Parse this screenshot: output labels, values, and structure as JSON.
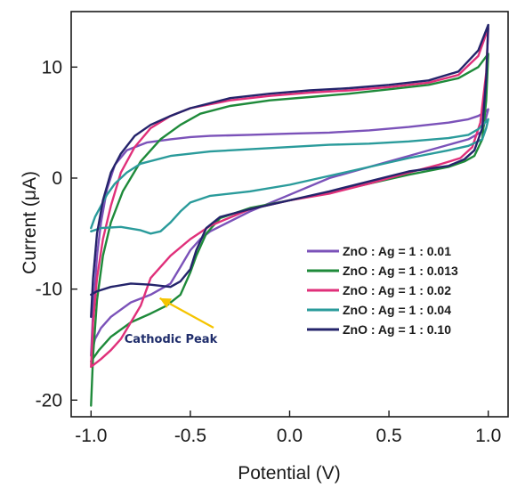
{
  "chart_data": {
    "type": "line",
    "xlabel": "Potential (V)",
    "ylabel": "Current (μA)",
    "xlim": [
      -1.1,
      1.1
    ],
    "ylim": [
      -21.5,
      15
    ],
    "xticks": [
      "-1.0",
      "-0.5",
      "0.0",
      "0.5",
      "1.0"
    ],
    "xtick_values": [
      -1.0,
      -0.5,
      0.0,
      0.5,
      1.0
    ],
    "yticks": [
      "10",
      "0",
      "-10",
      "-20"
    ],
    "ytick_values": [
      10,
      0,
      -10,
      -20
    ],
    "grid": false,
    "legend_position": "lower-right",
    "series": [
      {
        "name": "ZnO : Ag = 1 : 0.01",
        "color": "#7b52b9",
        "x": [
          -1.0,
          -0.99,
          -0.97,
          -0.95,
          -0.92,
          -0.88,
          -0.82,
          -0.72,
          -0.6,
          -0.5,
          -0.4,
          -0.2,
          0.0,
          0.2,
          0.4,
          0.6,
          0.8,
          0.9,
          0.95,
          0.98,
          1.0,
          0.99,
          0.97,
          0.9,
          0.8,
          0.6,
          0.4,
          0.2,
          0.0,
          -0.2,
          -0.4,
          -0.45,
          -0.5,
          -0.55,
          -0.6,
          -0.7,
          -0.8,
          -0.9,
          -0.95,
          -0.98,
          -1.0
        ],
        "y": [
          -16,
          -12,
          -7,
          -4,
          -1,
          1.2,
          2.5,
          3.2,
          3.5,
          3.7,
          3.8,
          3.9,
          4.0,
          4.1,
          4.3,
          4.6,
          5.0,
          5.3,
          5.6,
          5.9,
          6.2,
          5.5,
          4.2,
          3.5,
          3.0,
          2.0,
          1.0,
          0.0,
          -1.5,
          -3.0,
          -4.8,
          -5.5,
          -6.5,
          -8.0,
          -9.5,
          -10.5,
          -11.2,
          -12.5,
          -13.5,
          -14.5,
          -16
        ]
      },
      {
        "name": "ZnO : Ag = 1 : 0.013",
        "color": "#1e8a3a",
        "x": [
          -1.0,
          -0.99,
          -0.97,
          -0.94,
          -0.9,
          -0.84,
          -0.75,
          -0.65,
          -0.55,
          -0.45,
          -0.3,
          -0.1,
          0.1,
          0.3,
          0.5,
          0.7,
          0.85,
          0.95,
          1.0,
          0.99,
          0.97,
          0.93,
          0.88,
          0.8,
          0.6,
          0.4,
          0.2,
          0.0,
          -0.2,
          -0.35,
          -0.42,
          -0.47,
          -0.5,
          -0.55,
          -0.62,
          -0.7,
          -0.8,
          -0.9,
          -0.96,
          -1.0
        ],
        "y": [
          -20.5,
          -16,
          -11,
          -7,
          -4,
          -1.2,
          1.5,
          3.5,
          4.8,
          5.8,
          6.5,
          7.0,
          7.3,
          7.6,
          8.0,
          8.4,
          9.0,
          10.0,
          11.2,
          7.0,
          3.5,
          2.0,
          1.5,
          1.0,
          0.3,
          -0.5,
          -1.3,
          -2.0,
          -2.7,
          -3.6,
          -5.0,
          -7.0,
          -8.5,
          -10.5,
          -11.5,
          -12.2,
          -13.0,
          -14.3,
          -15.5,
          -16.5
        ]
      },
      {
        "name": "ZnO : Ag = 1 : 0.02",
        "color": "#e0307a",
        "x": [
          -1.0,
          -0.99,
          -0.97,
          -0.94,
          -0.9,
          -0.85,
          -0.78,
          -0.7,
          -0.6,
          -0.5,
          -0.3,
          -0.1,
          0.1,
          0.3,
          0.5,
          0.7,
          0.85,
          0.95,
          1.0,
          0.99,
          0.96,
          0.92,
          0.86,
          0.75,
          0.6,
          0.4,
          0.2,
          0.0,
          -0.2,
          -0.4,
          -0.5,
          -0.6,
          -0.7,
          -0.75,
          -0.8,
          -0.85,
          -0.9,
          -0.95,
          -1.0
        ],
        "y": [
          -17,
          -13,
          -9,
          -5.5,
          -2.5,
          0.5,
          2.8,
          4.5,
          5.6,
          6.3,
          7.0,
          7.4,
          7.7,
          7.9,
          8.2,
          8.6,
          9.3,
          11.0,
          13.5,
          9.5,
          5.0,
          2.8,
          1.8,
          1.2,
          0.5,
          -0.5,
          -1.4,
          -2.0,
          -2.8,
          -4.3,
          -5.5,
          -7.0,
          -9.0,
          -11.5,
          -13.0,
          -14.5,
          -15.5,
          -16.3,
          -17
        ]
      },
      {
        "name": "ZnO : Ag = 1 : 0.04",
        "color": "#2a9b9b",
        "x": [
          -1.0,
          -0.98,
          -0.95,
          -0.92,
          -0.88,
          -0.82,
          -0.75,
          -0.6,
          -0.4,
          -0.2,
          0.0,
          0.2,
          0.4,
          0.6,
          0.8,
          0.9,
          0.95,
          1.0,
          0.99,
          0.97,
          0.9,
          0.8,
          0.6,
          0.4,
          0.2,
          0.0,
          -0.2,
          -0.4,
          -0.5,
          -0.55,
          -0.6,
          -0.65,
          -0.7,
          -0.75,
          -0.85,
          -0.95,
          -1.0
        ],
        "y": [
          -4.5,
          -3.5,
          -2.5,
          -1.5,
          -0.5,
          0.5,
          1.3,
          2.0,
          2.4,
          2.6,
          2.8,
          3.0,
          3.1,
          3.3,
          3.6,
          3.9,
          4.4,
          5.3,
          4.5,
          3.5,
          2.9,
          2.5,
          1.8,
          1.0,
          0.2,
          -0.6,
          -1.2,
          -1.6,
          -2.2,
          -3.0,
          -4.0,
          -4.8,
          -5.0,
          -4.7,
          -4.4,
          -4.5,
          -4.8
        ]
      },
      {
        "name": "ZnO : Ag = 1 : 0.10",
        "color": "#24246b",
        "x": [
          -1.0,
          -0.99,
          -0.97,
          -0.94,
          -0.9,
          -0.85,
          -0.78,
          -0.7,
          -0.6,
          -0.5,
          -0.3,
          -0.1,
          0.1,
          0.3,
          0.5,
          0.7,
          0.85,
          0.95,
          1.0,
          0.99,
          0.97,
          0.93,
          0.88,
          0.8,
          0.6,
          0.4,
          0.2,
          0.0,
          -0.2,
          -0.35,
          -0.42,
          -0.47,
          -0.5,
          -0.55,
          -0.6,
          -0.7,
          -0.8,
          -0.9,
          -0.97,
          -1.0
        ],
        "y": [
          -12.5,
          -9,
          -5,
          -2,
          0.5,
          2.2,
          3.8,
          4.8,
          5.6,
          6.3,
          7.2,
          7.6,
          7.9,
          8.1,
          8.4,
          8.8,
          9.6,
          11.5,
          13.8,
          9.0,
          4.5,
          2.5,
          1.7,
          1.1,
          0.6,
          -0.3,
          -1.2,
          -2.0,
          -2.8,
          -3.5,
          -4.5,
          -6.5,
          -8.2,
          -9.3,
          -9.8,
          -9.6,
          -9.5,
          -9.8,
          -10.2,
          -10.5
        ]
      }
    ],
    "annotations": [
      {
        "text": "Cathodic Peak",
        "x": -0.6,
        "y": -10.5,
        "arrow_color": "#f5c400"
      }
    ]
  }
}
